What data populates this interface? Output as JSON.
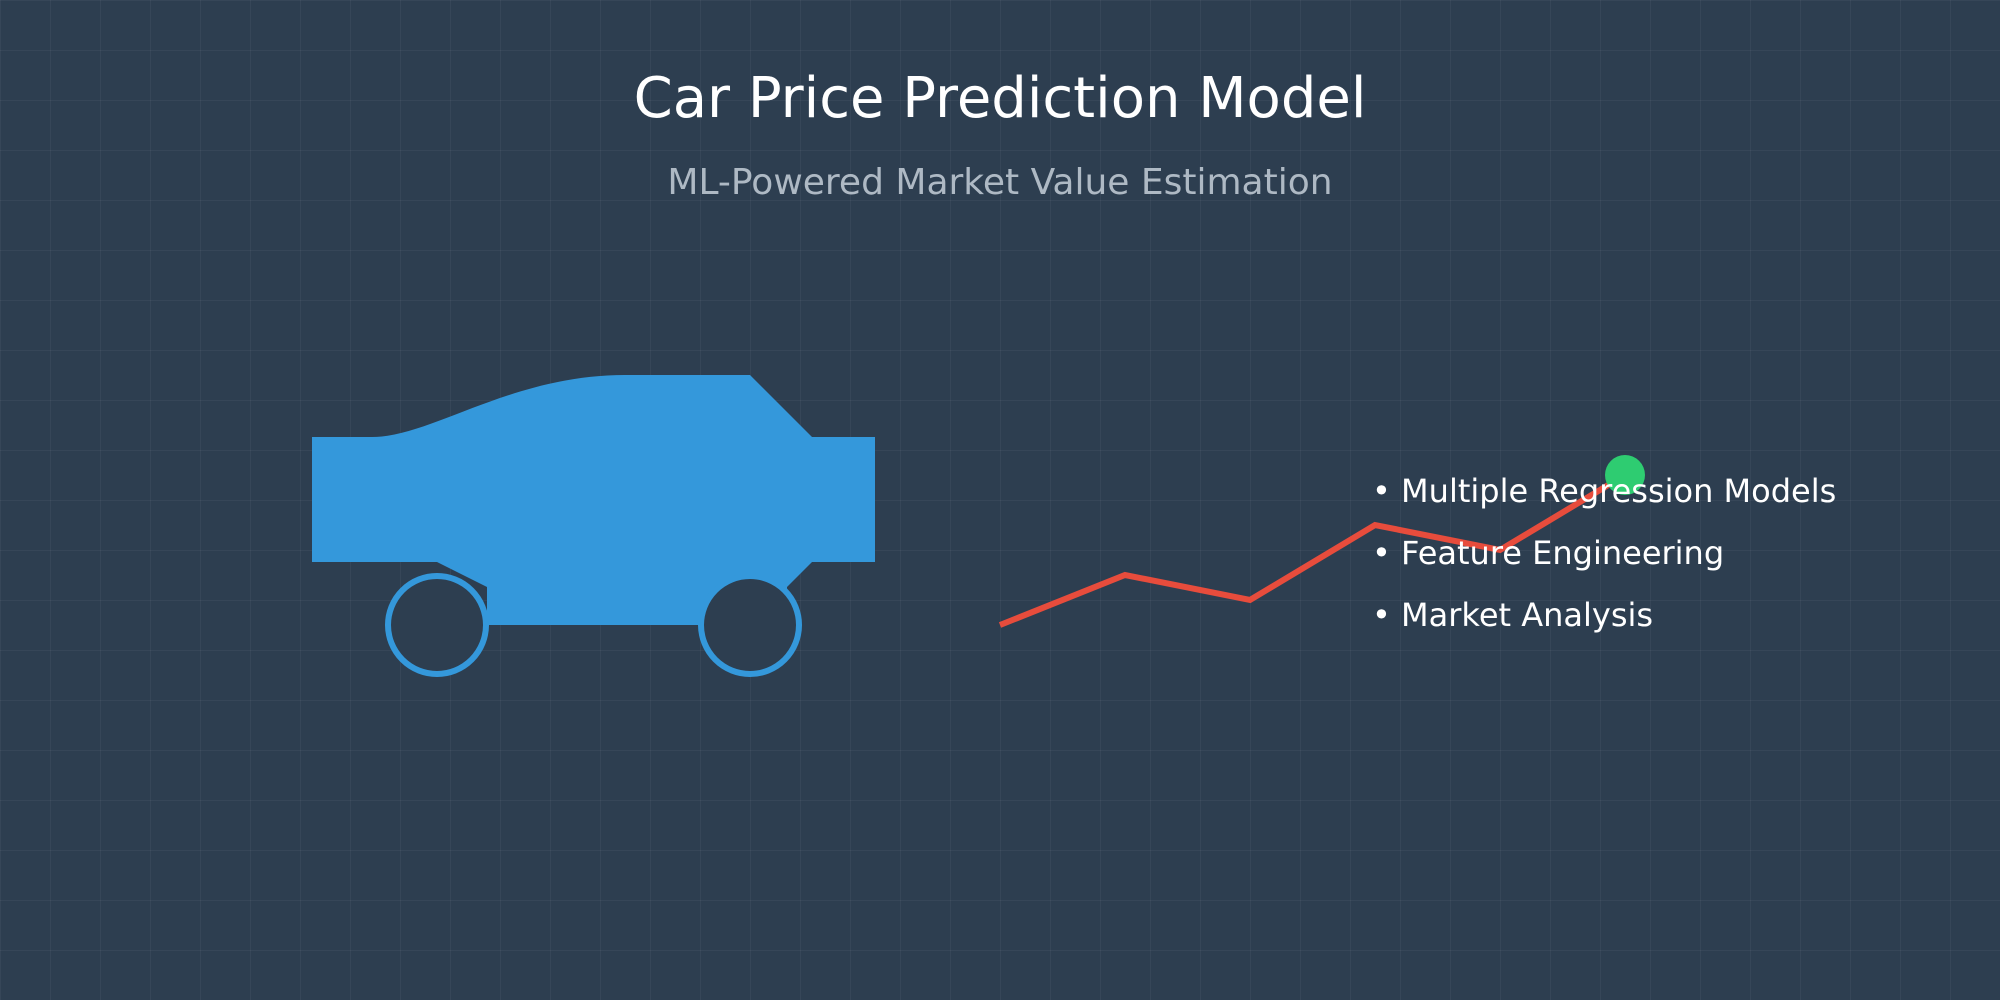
{
  "header": {
    "title": "Car Price Prediction Model",
    "subtitle": "ML-Powered Market Value Estimation"
  },
  "illustration": {
    "car_icon": "car-icon",
    "trend_icon": "trend-line-icon",
    "colors": {
      "background": "#2d3e50",
      "car": "#3498db",
      "trend_line": "#e74c3c",
      "trend_point": "#2ecc71",
      "title_text": "#ffffff",
      "subtitle_text": "#aeb9c4"
    }
  },
  "features": {
    "items": [
      "Multiple Regression Models",
      "Feature Engineering",
      "Market Analysis"
    ]
  }
}
